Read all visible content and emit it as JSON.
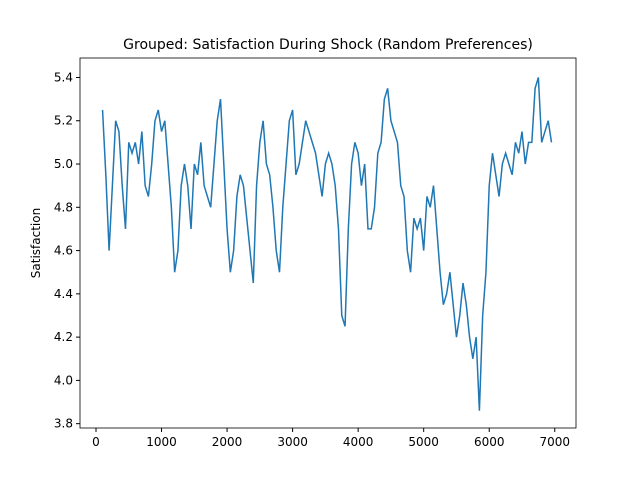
{
  "chart_data": {
    "type": "line",
    "title": "Grouped: Satisfaction During Shock (Random Preferences)",
    "y_label": "Satisfaction",
    "x": [
      100,
      150,
      200,
      250,
      300,
      350,
      400,
      450,
      500,
      550,
      600,
      650,
      700,
      750,
      800,
      850,
      900,
      950,
      1000,
      1050,
      1100,
      1150,
      1200,
      1250,
      1300,
      1350,
      1400,
      1450,
      1500,
      1550,
      1600,
      1650,
      1700,
      1750,
      1800,
      1850,
      1900,
      1950,
      2000,
      2050,
      2100,
      2150,
      2200,
      2250,
      2300,
      2350,
      2400,
      2450,
      2500,
      2550,
      2600,
      2650,
      2700,
      2750,
      2800,
      2850,
      2900,
      2950,
      3000,
      3050,
      3100,
      3150,
      3200,
      3250,
      3300,
      3350,
      3400,
      3450,
      3500,
      3550,
      3600,
      3650,
      3700,
      3750,
      3800,
      3850,
      3900,
      3950,
      4000,
      4050,
      4100,
      4150,
      4200,
      4250,
      4300,
      4350,
      4400,
      4450,
      4500,
      4550,
      4600,
      4650,
      4700,
      4750,
      4800,
      4850,
      4900,
      4950,
      5000,
      5050,
      5100,
      5150,
      5200,
      5250,
      5300,
      5350,
      5400,
      5450,
      5500,
      5550,
      5600,
      5650,
      5700,
      5750,
      5800,
      5850,
      5900,
      5950,
      6000,
      6050,
      6100,
      6150,
      6200,
      6250,
      6300,
      6350,
      6400,
      6450,
      6500,
      6550,
      6600,
      6650,
      6700,
      6750,
      6800,
      6850,
      6900,
      6950
    ],
    "series": [
      {
        "color": "#1f77b4",
        "values": [
          5.25,
          4.95,
          4.6,
          4.9,
          5.2,
          5.15,
          4.9,
          4.7,
          5.1,
          5.05,
          5.1,
          5.0,
          5.15,
          4.9,
          4.85,
          5.0,
          5.2,
          5.25,
          5.15,
          5.2,
          5.0,
          4.8,
          4.5,
          4.6,
          4.9,
          5.0,
          4.9,
          4.7,
          5.0,
          4.95,
          5.1,
          4.9,
          4.85,
          4.8,
          5.0,
          5.2,
          5.3,
          5.0,
          4.7,
          4.5,
          4.6,
          4.85,
          4.95,
          4.9,
          4.75,
          4.6,
          4.45,
          4.9,
          5.1,
          5.2,
          5.0,
          4.95,
          4.8,
          4.6,
          4.5,
          4.8,
          5.0,
          5.2,
          5.25,
          4.95,
          5.0,
          5.1,
          5.2,
          5.15,
          5.1,
          5.05,
          4.95,
          4.85,
          5.0,
          5.05,
          5.0,
          4.9,
          4.7,
          4.3,
          4.25,
          4.7,
          5.0,
          5.1,
          5.05,
          4.9,
          5.0,
          4.7,
          4.7,
          4.8,
          5.05,
          5.1,
          5.3,
          5.35,
          5.2,
          5.15,
          5.1,
          4.9,
          4.85,
          4.6,
          4.5,
          4.75,
          4.7,
          4.75,
          4.6,
          4.85,
          4.8,
          4.9,
          4.7,
          4.5,
          4.35,
          4.4,
          4.5,
          4.35,
          4.2,
          4.3,
          4.45,
          4.35,
          4.2,
          4.1,
          4.2,
          3.86,
          4.3,
          4.5,
          4.9,
          5.05,
          4.95,
          4.85,
          5.0,
          5.05,
          5.0,
          4.95,
          5.1,
          5.05,
          5.15,
          5.0,
          5.1,
          5.1,
          5.35,
          5.4,
          5.1,
          5.15,
          5.2,
          5.1
        ]
      }
    ],
    "xlim": [
      -244,
      7324
    ],
    "xticks": [
      0,
      1000,
      2000,
      3000,
      4000,
      5000,
      6000,
      7000
    ],
    "ylim": [
      3.78,
      5.49
    ],
    "yticks": [
      {
        "value": 3.8,
        "label": "3.8"
      },
      {
        "value": 4.0,
        "label": "4.0"
      },
      {
        "value": 4.2,
        "label": "4.2"
      },
      {
        "value": 4.4,
        "label": "4.4"
      },
      {
        "value": 4.6,
        "label": "4.6"
      },
      {
        "value": 4.8,
        "label": "4.8"
      },
      {
        "value": 5.0,
        "label": "5.0"
      },
      {
        "value": 5.2,
        "label": "5.2"
      },
      {
        "value": 5.4,
        "label": "5.4"
      }
    ]
  }
}
